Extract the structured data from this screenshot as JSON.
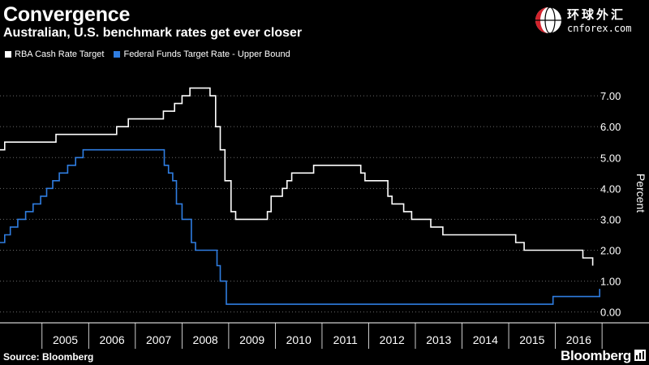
{
  "header": {
    "title": "Convergence",
    "subtitle": "Australian, U.S. benchmark rates get ever closer"
  },
  "logo": {
    "chinese_text": "环球外汇",
    "url_text": "cnforex.com"
  },
  "footer": {
    "source": "Source: Bloomberg",
    "brand": "Bloomberg"
  },
  "colors": {
    "background": "#000000",
    "rba_line": "#ffffff",
    "fed_line": "#2f7de1",
    "grid": "#6a6a6a",
    "logo_red": "#d3232c"
  },
  "chart_data": {
    "type": "line",
    "title": "Convergence",
    "subtitle": "Australian, U.S. benchmark rates get ever closer",
    "xlabel": "",
    "ylabel": "Percent",
    "xlim": [
      2004.1,
      2017.05
    ],
    "ylim": [
      -0.35,
      8.0
    ],
    "y_ticks": [
      "0.00",
      "1.00",
      "2.00",
      "3.00",
      "4.00",
      "5.00",
      "6.00",
      "7.00"
    ],
    "x_ticks": [
      "2005",
      "2006",
      "2007",
      "2008",
      "2009",
      "2010",
      "2011",
      "2012",
      "2013",
      "2014",
      "2015",
      "2016"
    ],
    "grid": "horizontal dotted",
    "legend_position": "top-left",
    "series": [
      {
        "name": "RBA Cash Rate Target",
        "color": "#ffffff",
        "step": true,
        "x": [
          2004.1,
          2004.2,
          2005.17,
          2005.3,
          2006.35,
          2006.6,
          2006.85,
          2007.6,
          2007.84,
          2008.0,
          2008.17,
          2008.4,
          2008.6,
          2008.72,
          2008.82,
          2008.92,
          2009.05,
          2009.15,
          2009.78,
          2009.83,
          2009.91,
          2010.15,
          2010.25,
          2010.35,
          2010.82,
          2011.83,
          2011.92,
          2012.17,
          2012.41,
          2012.5,
          2012.75,
          2012.92,
          2013.33,
          2013.59,
          2014.0,
          2015.0,
          2015.15,
          2015.33,
          2016.34,
          2016.59,
          2016.8
        ],
        "y": [
          5.25,
          5.5,
          5.5,
          5.75,
          5.75,
          6.0,
          6.25,
          6.5,
          6.75,
          7.0,
          7.25,
          7.25,
          7.0,
          6.0,
          5.25,
          4.25,
          3.25,
          3.0,
          3.0,
          3.25,
          3.75,
          4.0,
          4.25,
          4.5,
          4.75,
          4.5,
          4.25,
          4.25,
          3.75,
          3.5,
          3.25,
          3.0,
          2.75,
          2.5,
          2.5,
          2.5,
          2.25,
          2.0,
          2.0,
          1.75,
          1.5
        ]
      },
      {
        "name": "Federal Funds Target Rate - Upper Bound",
        "color": "#2f7de1",
        "step": true,
        "x": [
          2004.1,
          2004.2,
          2004.32,
          2004.48,
          2004.65,
          2004.81,
          2004.97,
          2005.1,
          2005.23,
          2005.37,
          2005.55,
          2005.72,
          2005.88,
          2006.0,
          2006.14,
          2006.26,
          2006.38,
          2006.5,
          2007.62,
          2007.71,
          2007.8,
          2007.88,
          2008.0,
          2008.05,
          2008.2,
          2008.29,
          2008.75,
          2008.82,
          2008.95,
          2015.95,
          2016.95
        ],
        "y": [
          2.25,
          2.5,
          2.75,
          3.0,
          3.25,
          3.5,
          3.75,
          4.0,
          4.25,
          4.5,
          4.75,
          5.0,
          5.25,
          5.25,
          5.25,
          5.25,
          5.25,
          5.25,
          4.75,
          4.5,
          4.25,
          3.5,
          3.0,
          3.0,
          2.25,
          2.0,
          1.5,
          1.0,
          0.25,
          0.5,
          0.75
        ]
      }
    ]
  }
}
